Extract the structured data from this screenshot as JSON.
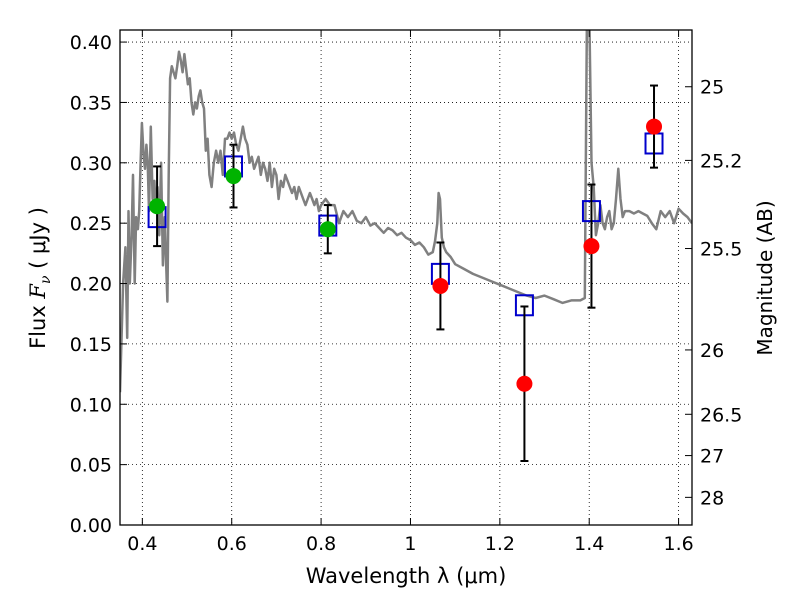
{
  "chart_data": {
    "type": "scatter",
    "title": "",
    "xlabel": "Wavelength  λ (μm)",
    "ylabel": "Flux  F_ν  ( μJy )",
    "ylabel_parts": {
      "pre": "Flux  ",
      "var": "F",
      "sub": "ν",
      "post": "  ( μJy )"
    },
    "y2label": "Magnitude (AB)",
    "xlim": [
      0.35,
      1.63
    ],
    "ylim": [
      0.0,
      0.41
    ],
    "xticks": [
      0.4,
      0.6,
      0.8,
      1.0,
      1.2,
      1.4,
      1.6
    ],
    "xtick_labels": [
      "0.4",
      "0.6",
      "0.8",
      "1",
      "1.2",
      "1.4",
      "1.6"
    ],
    "yticks": [
      0.0,
      0.05,
      0.1,
      0.15,
      0.2,
      0.25,
      0.3,
      0.35,
      0.4
    ],
    "ytick_labels": [
      "0.00",
      "0.05",
      "0.10",
      "0.15",
      "0.20",
      "0.25",
      "0.30",
      "0.35",
      "0.40"
    ],
    "y2ticks": [
      {
        "label": "25",
        "flux": 0.363
      },
      {
        "label": "25.2",
        "flux": 0.302
      },
      {
        "label": "25.5",
        "flux": 0.229
      },
      {
        "label": "26",
        "flux": 0.145
      },
      {
        "label": "26.5",
        "flux": 0.0917
      },
      {
        "label": "27",
        "flux": 0.0575
      },
      {
        "label": "28",
        "flux": 0.0229
      }
    ],
    "grid": true,
    "series": [
      {
        "kind": "line",
        "color": "#808080",
        "x": [
          0.35,
          0.357,
          0.362,
          0.366,
          0.369,
          0.372,
          0.376,
          0.379,
          0.383,
          0.386,
          0.39,
          0.393,
          0.396,
          0.399,
          0.403,
          0.406,
          0.409,
          0.412,
          0.415,
          0.419,
          0.423,
          0.427,
          0.43,
          0.434,
          0.438,
          0.442,
          0.446,
          0.45,
          0.453,
          0.456,
          0.459,
          0.462,
          0.466,
          0.47,
          0.474,
          0.478,
          0.482,
          0.486,
          0.49,
          0.494,
          0.498,
          0.502,
          0.506,
          0.51,
          0.514,
          0.518,
          0.522,
          0.526,
          0.53,
          0.534,
          0.538,
          0.542,
          0.546,
          0.55,
          0.555,
          0.56,
          0.565,
          0.57,
          0.575,
          0.58,
          0.585,
          0.59,
          0.595,
          0.6,
          0.605,
          0.61,
          0.615,
          0.62,
          0.625,
          0.63,
          0.635,
          0.64,
          0.645,
          0.65,
          0.655,
          0.66,
          0.665,
          0.67,
          0.675,
          0.68,
          0.685,
          0.69,
          0.695,
          0.7,
          0.705,
          0.71,
          0.715,
          0.72,
          0.725,
          0.73,
          0.735,
          0.74,
          0.745,
          0.75,
          0.755,
          0.76,
          0.765,
          0.77,
          0.775,
          0.78,
          0.785,
          0.79,
          0.795,
          0.8,
          0.81,
          0.82,
          0.83,
          0.84,
          0.85,
          0.86,
          0.87,
          0.88,
          0.89,
          0.9,
          0.91,
          0.92,
          0.93,
          0.94,
          0.95,
          0.96,
          0.97,
          0.98,
          0.99,
          1.0,
          1.01,
          1.02,
          1.03,
          1.04,
          1.05,
          1.055,
          1.06,
          1.063,
          1.066,
          1.07,
          1.075,
          1.08,
          1.09,
          1.1,
          1.12,
          1.14,
          1.16,
          1.18,
          1.2,
          1.22,
          1.24,
          1.26,
          1.28,
          1.3,
          1.32,
          1.34,
          1.36,
          1.38,
          1.39,
          1.395,
          1.4,
          1.405,
          1.41,
          1.415,
          1.42,
          1.425,
          1.43,
          1.435,
          1.44,
          1.445,
          1.45,
          1.455,
          1.46,
          1.465,
          1.47,
          1.475,
          1.48,
          1.49,
          1.5,
          1.51,
          1.52,
          1.53,
          1.54,
          1.55,
          1.56,
          1.57,
          1.58,
          1.59,
          1.6,
          1.61,
          1.62,
          1.63
        ],
        "y": [
          0.11,
          0.2,
          0.23,
          0.155,
          0.26,
          0.2,
          0.24,
          0.29,
          0.2,
          0.255,
          0.245,
          0.26,
          0.3,
          0.333,
          0.305,
          0.295,
          0.315,
          0.3,
          0.26,
          0.33,
          0.27,
          0.285,
          0.26,
          0.28,
          0.24,
          0.3,
          0.215,
          0.255,
          0.22,
          0.185,
          0.29,
          0.37,
          0.38,
          0.375,
          0.37,
          0.38,
          0.392,
          0.385,
          0.375,
          0.39,
          0.378,
          0.365,
          0.37,
          0.35,
          0.34,
          0.35,
          0.345,
          0.355,
          0.36,
          0.35,
          0.345,
          0.31,
          0.32,
          0.29,
          0.28,
          0.3,
          0.31,
          0.3,
          0.31,
          0.29,
          0.32,
          0.32,
          0.325,
          0.32,
          0.325,
          0.315,
          0.31,
          0.32,
          0.33,
          0.32,
          0.315,
          0.3,
          0.305,
          0.295,
          0.3,
          0.305,
          0.29,
          0.3,
          0.295,
          0.285,
          0.3,
          0.28,
          0.295,
          0.29,
          0.27,
          0.285,
          0.28,
          0.29,
          0.285,
          0.28,
          0.275,
          0.28,
          0.27,
          0.28,
          0.275,
          0.27,
          0.265,
          0.27,
          0.275,
          0.27,
          0.265,
          0.27,
          0.26,
          0.265,
          0.27,
          0.265,
          0.265,
          0.25,
          0.26,
          0.255,
          0.26,
          0.252,
          0.25,
          0.255,
          0.248,
          0.25,
          0.246,
          0.242,
          0.246,
          0.244,
          0.24,
          0.242,
          0.238,
          0.236,
          0.232,
          0.234,
          0.23,
          0.224,
          0.226,
          0.235,
          0.25,
          0.275,
          0.27,
          0.238,
          0.23,
          0.226,
          0.222,
          0.216,
          0.212,
          0.208,
          0.205,
          0.202,
          0.199,
          0.196,
          0.193,
          0.19,
          0.188,
          0.19,
          0.187,
          0.184,
          0.186,
          0.186,
          0.188,
          0.43,
          0.43,
          0.3,
          0.28,
          0.24,
          0.25,
          0.265,
          0.25,
          0.245,
          0.255,
          0.26,
          0.245,
          0.25,
          0.27,
          0.295,
          0.27,
          0.255,
          0.26,
          0.26,
          0.258,
          0.26,
          0.258,
          0.256,
          0.25,
          0.245,
          0.26,
          0.255,
          0.26,
          0.25,
          0.262,
          0.258,
          0.255,
          0.25
        ]
      },
      {
        "kind": "model-boxes",
        "color": "#0000cc",
        "x": [
          0.433,
          0.604,
          0.815,
          1.067,
          1.255,
          1.405,
          1.545
        ],
        "y": [
          0.255,
          0.297,
          0.248,
          0.208,
          0.182,
          0.26,
          0.316
        ]
      },
      {
        "kind": "observed-green",
        "color": "#00b300",
        "x": [
          0.433,
          0.604,
          0.815
        ],
        "y": [
          0.264,
          0.289,
          0.245
        ],
        "yerr": [
          0.033,
          0.026,
          0.02
        ]
      },
      {
        "kind": "observed-red",
        "color": "#ff0000",
        "x": [
          1.067,
          1.255,
          1.405,
          1.545
        ],
        "y": [
          0.198,
          0.117,
          0.231,
          0.33
        ],
        "yerr": [
          0.036,
          0.064,
          0.051,
          0.034
        ]
      }
    ]
  }
}
